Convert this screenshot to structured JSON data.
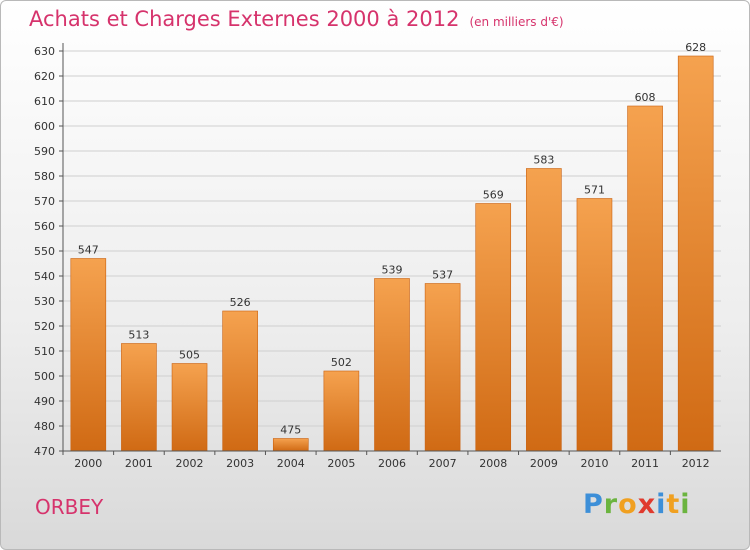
{
  "header": {
    "title": "Achats et Charges Externes 2000 à 2012",
    "subtitle": "(en milliers d'€)"
  },
  "footer": {
    "commune": "ORBEY",
    "logo_text": "Proxiti"
  },
  "colors": {
    "bar_top": "#f5a24f",
    "bar_bottom": "#d06a14",
    "title": "#d6336c",
    "grid": "#cfcfcf"
  },
  "chart_data": {
    "type": "bar",
    "title": "Achats et Charges Externes 2000 à 2012",
    "subtitle": "(en milliers d'€)",
    "categories": [
      "2000",
      "2001",
      "2002",
      "2003",
      "2004",
      "2005",
      "2006",
      "2007",
      "2008",
      "2009",
      "2010",
      "2011",
      "2012"
    ],
    "values": [
      547,
      513,
      505,
      526,
      475,
      502,
      539,
      537,
      569,
      583,
      571,
      608,
      628
    ],
    "ylim": [
      470,
      630
    ],
    "yticks": [
      470,
      480,
      490,
      500,
      510,
      520,
      530,
      540,
      550,
      560,
      570,
      580,
      590,
      600,
      610,
      620,
      630
    ],
    "xlabel": "",
    "ylabel": "",
    "grid": true,
    "data_labels": true
  }
}
